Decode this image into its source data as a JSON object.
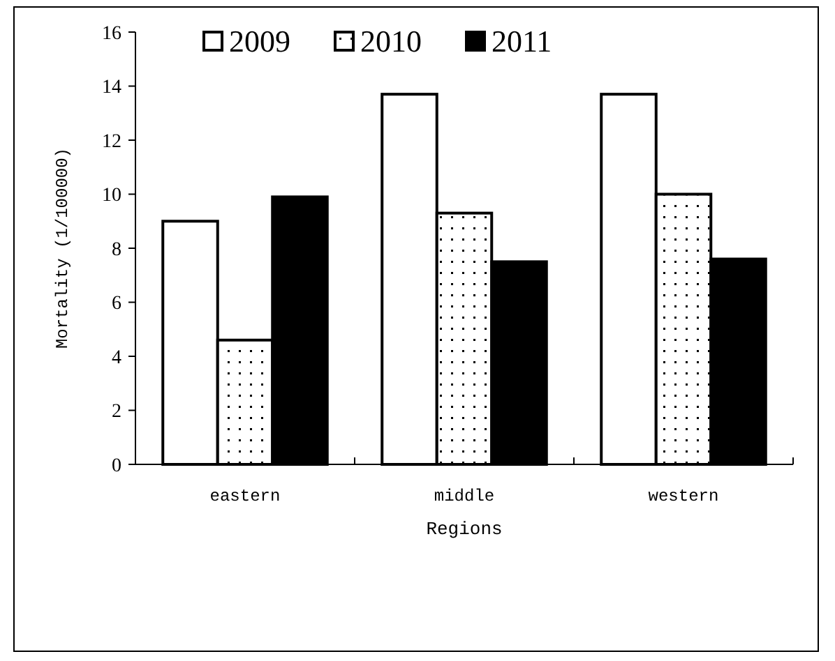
{
  "chart_data": {
    "type": "bar",
    "xlabel": "Regions",
    "ylabel": "Mortality (1/100000)",
    "categories": [
      "eastern",
      "middle",
      "western"
    ],
    "series": [
      {
        "name": "2009",
        "color": "#ffffff",
        "values": [
          9.0,
          13.7,
          13.7
        ]
      },
      {
        "name": "2010",
        "color": "#ffffff",
        "values": [
          4.6,
          9.3,
          10.0
        ]
      },
      {
        "name": "2011",
        "color": "#000000",
        "values": [
          9.9,
          7.5,
          7.6
        ]
      }
    ],
    "ylim": [
      0,
      16
    ],
    "yticks": [
      0,
      2,
      4,
      6,
      8,
      10,
      12,
      14,
      16
    ],
    "legend": "top",
    "grid": false
  }
}
